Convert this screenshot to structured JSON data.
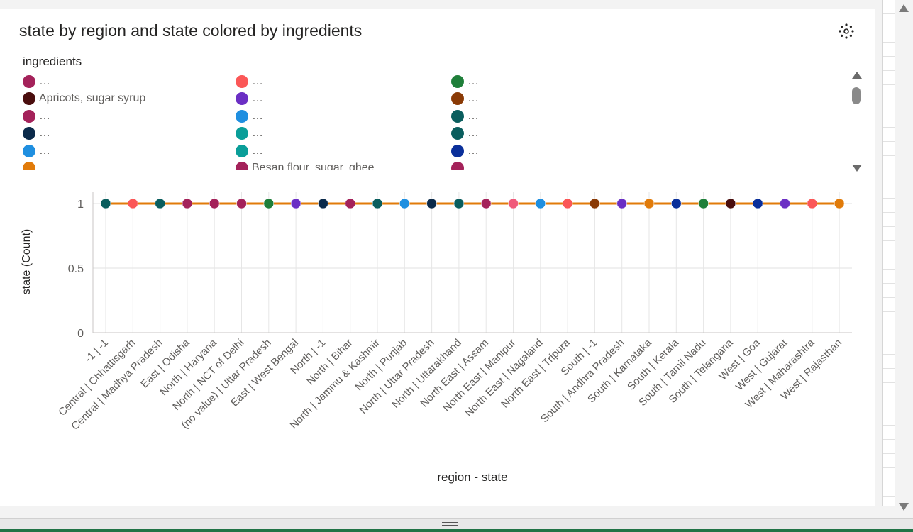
{
  "visual": {
    "title": "state by region and state colored by ingredients"
  },
  "legend": {
    "title": "ingredients",
    "items": [
      {
        "label": "…",
        "color": "#a4225a"
      },
      {
        "label": "Apricots, sugar syrup",
        "color": "#4a0e0e"
      },
      {
        "label": "…",
        "color": "#a4225a"
      },
      {
        "label": "…",
        "color": "#0b2a4a"
      },
      {
        "label": "…",
        "color": "#1f8fe0"
      },
      {
        "label": "…",
        "color": "#e17b0a"
      },
      {
        "label": "…",
        "color": "#fb5757"
      },
      {
        "label": "…",
        "color": "#6b2fc4"
      },
      {
        "label": "…",
        "color": "#1f8fe0"
      },
      {
        "label": "…",
        "color": "#0a9e99"
      },
      {
        "label": "…",
        "color": "#0a9e99"
      },
      {
        "label": "Besan flour, sugar, ghee",
        "color": "#a4225a"
      },
      {
        "label": "…",
        "color": "#1f7f3a"
      },
      {
        "label": "…",
        "color": "#8a3a06"
      },
      {
        "label": "…",
        "color": "#0a5e5e"
      },
      {
        "label": "…",
        "color": "#0a5e5e"
      },
      {
        "label": "…",
        "color": "#0a2f9a"
      },
      {
        "label": "…",
        "color": "#a4225a"
      }
    ]
  },
  "chart_data": {
    "type": "line",
    "xlabel": "region - state",
    "ylabel": "state (Count)",
    "ylim": [
      0,
      1
    ],
    "yticks": [
      "1",
      "0.5",
      "0"
    ],
    "ytick_values": [
      1,
      0.5,
      0
    ],
    "line_color": "#e17b0a",
    "grid": true,
    "categories": [
      "-1 | -1",
      "Central | Chhattisgarh",
      "Central | Madhya Pradesh",
      "East | Odisha",
      "North | Haryana",
      "North | NCT of Delhi",
      "(no value) | Uttar Pradesh",
      "East | West Bengal",
      "North | -1",
      "North | Bihar",
      "North | Jammu & Kashmir",
      "North | Punjab",
      "North | Uttar Pradesh",
      "North | Uttarakhand",
      "North East | Assam",
      "North East | Manipur",
      "North East | Nagaland",
      "North East | Tripura",
      "South | -1",
      "South | Andhra Pradesh",
      "South | Karnataka",
      "South | Kerala",
      "South | Tamil Nadu",
      "South | Telangana",
      "West | Goa",
      "West | Gujarat",
      "West | Maharashtra",
      "West | Rajasthan"
    ],
    "values": [
      1,
      1,
      1,
      1,
      1,
      1,
      1,
      1,
      1,
      1,
      1,
      1,
      1,
      1,
      1,
      1,
      1,
      1,
      1,
      1,
      1,
      1,
      1,
      1,
      1,
      1,
      1,
      1
    ],
    "point_colors": [
      "#0a5e5e",
      "#fb5757",
      "#0a5e5e",
      "#a4225a",
      "#a4225a",
      "#a4225a",
      "#1f7f3a",
      "#6b2fc4",
      "#0b2a4a",
      "#a4225a",
      "#0a5e5e",
      "#1f8fe0",
      "#0b2a4a",
      "#0a5e5e",
      "#a4225a",
      "#f05a7a",
      "#1f8fe0",
      "#fb5757",
      "#8a3a06",
      "#6b2fc4",
      "#e17b0a",
      "#0a2f9a",
      "#1f7f3a",
      "#4a0e0e",
      "#0a2f9a",
      "#6b2fc4",
      "#fb5757",
      "#e17b0a"
    ]
  }
}
